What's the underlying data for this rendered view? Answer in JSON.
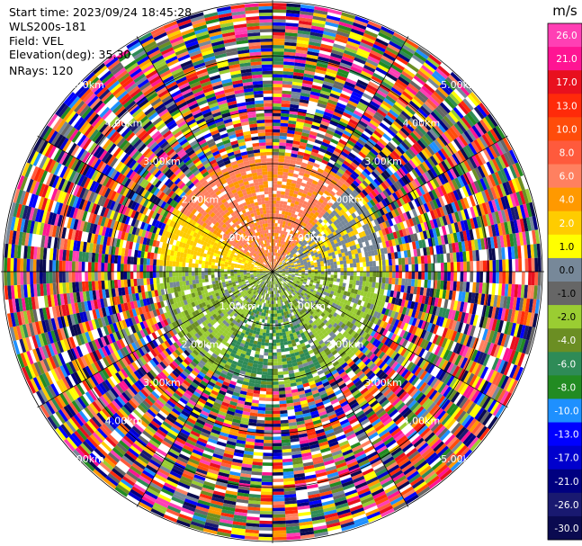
{
  "header": {
    "start_time": "Start time: 2023/09/24 18:45:28",
    "instrument": "WLS200s-181",
    "field": "Field: VEL",
    "elevation": "Elevation(deg): 35.30",
    "nrays": "NRays: 120"
  },
  "chart_data": {
    "type": "heatmap",
    "projection": "polar PPI",
    "field": "VEL",
    "nrays": 120,
    "elevation_deg": 35.3,
    "range_rings_km": [
      1.0,
      2.0,
      3.0,
      4.0,
      5.0
    ],
    "range_ring_labels": [
      "1.00km",
      "2.00km",
      "3.00km",
      "4.00km",
      "5.00km"
    ],
    "colorbar": {
      "unit": "m/s",
      "ticks": [
        "26.0",
        "21.0",
        "17.0",
        "13.0",
        "10.0",
        "8.0",
        "6.0",
        "4.0",
        "2.0",
        "1.0",
        "0.0",
        "-1.0",
        "-2.0",
        "-4.0",
        "-6.0",
        "-8.0",
        "-10.0",
        "-13.0",
        "-17.0",
        "-21.0",
        "-26.0",
        "-30.0"
      ],
      "colors": [
        "#ff3fb4",
        "#ff1493",
        "#e8101e",
        "#ff2a0a",
        "#ff4c0a",
        "#ff5a3c",
        "#ff8060",
        "#ff9900",
        "#ffcc00",
        "#ffff00",
        "#778899",
        "#666666",
        "#9acd32",
        "#6b8e23",
        "#2e8b57",
        "#228b22",
        "#1e90ff",
        "#0000ff",
        "#0000cd",
        "#000080",
        "#191970",
        "#0a0a50"
      ]
    }
  }
}
